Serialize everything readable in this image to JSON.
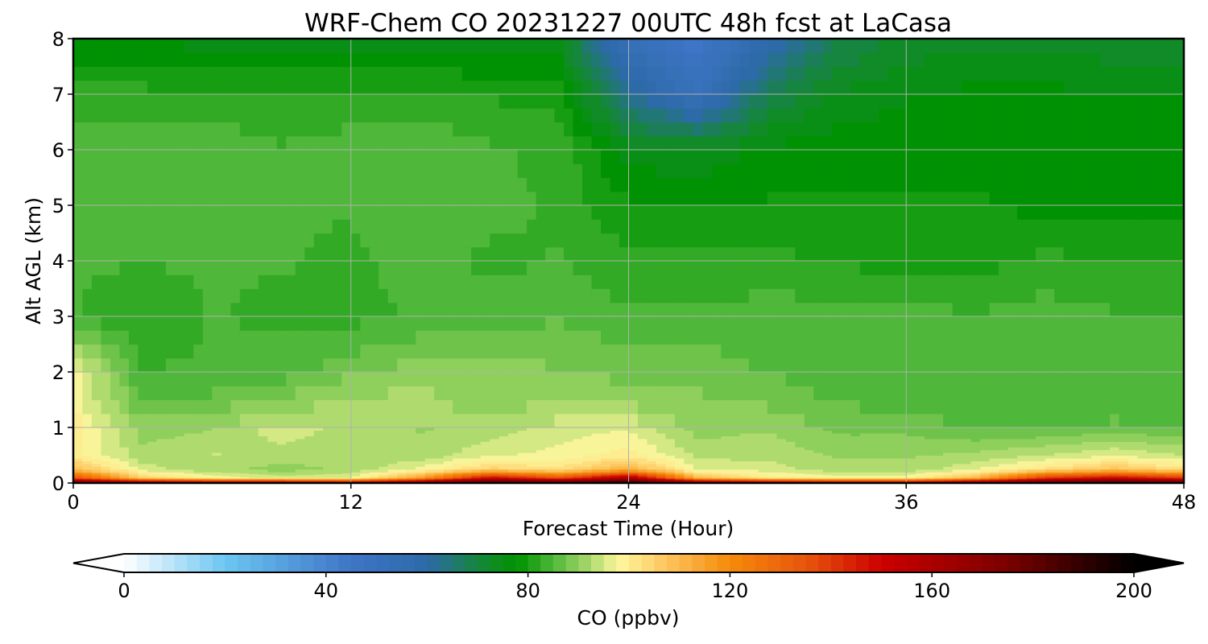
{
  "chart_data": {
    "type": "heatmap",
    "title": "WRF-Chem CO  20231227 00UTC 48h fcst at LaCasa",
    "xlabel": "Forecast Time (Hour)",
    "ylabel": "Alt AGL (km)",
    "xlim": [
      0,
      48
    ],
    "ylim": [
      0,
      8
    ],
    "x_ticks": [
      0,
      12,
      24,
      36,
      48
    ],
    "y_ticks": [
      0,
      1,
      2,
      3,
      4,
      5,
      6,
      7,
      8
    ],
    "grid": true,
    "x": [
      0,
      3,
      6,
      9,
      12,
      15,
      18,
      21,
      24,
      27,
      30,
      33,
      36,
      39,
      42,
      45,
      48
    ],
    "y": [
      0,
      0.1,
      0.25,
      0.5,
      1,
      1.5,
      2,
      3,
      4,
      5,
      6,
      7,
      8
    ],
    "values": [
      [
        185,
        175,
        170,
        170,
        165,
        180,
        195,
        195,
        198,
        180,
        170,
        165,
        165,
        180,
        190,
        195,
        190
      ],
      [
        135,
        105,
        98,
        95,
        96,
        115,
        150,
        135,
        160,
        110,
        100,
        98,
        98,
        110,
        140,
        150,
        140
      ],
      [
        110,
        95,
        92,
        90,
        92,
        97,
        105,
        102,
        112,
        96,
        95,
        92,
        92,
        96,
        102,
        108,
        102
      ],
      [
        100,
        92,
        94,
        93,
        92,
        92,
        96,
        97,
        100,
        93,
        93,
        91,
        91,
        92,
        94,
        96,
        94
      ],
      [
        100,
        90,
        91,
        95,
        93,
        91,
        92,
        95,
        96,
        90,
        91,
        88,
        88,
        86,
        86,
        87,
        86
      ],
      [
        98,
        86,
        87,
        89,
        92,
        92,
        90,
        91,
        90,
        89,
        88,
        86,
        85,
        84,
        84,
        84,
        84
      ],
      [
        97,
        84,
        84,
        85,
        88,
        90,
        90,
        89,
        88,
        88,
        86,
        85,
        85,
        86,
        86,
        84,
        84
      ],
      [
        84,
        81,
        84,
        83,
        83,
        84,
        85,
        86,
        84,
        84,
        85,
        85,
        85,
        84,
        85,
        84,
        84
      ],
      [
        84,
        84,
        84,
        84,
        83,
        85,
        83,
        84,
        82,
        82,
        82,
        81,
        80,
        80,
        82,
        81,
        81
      ],
      [
        85,
        84,
        86,
        84,
        84,
        86,
        85,
        83,
        79,
        79,
        79,
        79,
        79,
        79,
        78,
        78,
        78
      ],
      [
        86,
        86,
        86,
        84,
        85,
        86,
        84,
        83,
        75,
        74,
        77,
        78,
        78,
        78,
        78,
        78,
        78
      ],
      [
        82,
        82,
        82,
        81,
        82,
        82,
        81,
        80,
        62,
        52,
        68,
        74,
        76,
        77,
        77,
        76,
        76
      ],
      [
        76,
        76,
        75,
        75,
        75,
        75,
        74,
        74,
        52,
        44,
        58,
        68,
        72,
        73,
        73,
        72,
        72
      ]
    ],
    "colorbar": {
      "label": "CO  (ppbv)",
      "min": 0,
      "max": 200,
      "ticks": [
        0,
        40,
        80,
        120,
        160,
        200
      ],
      "extend": "both",
      "stops": [
        {
          "v": 0,
          "c": "#ffffff"
        },
        {
          "v": 20,
          "c": "#6cc6f2"
        },
        {
          "v": 45,
          "c": "#3e75c6"
        },
        {
          "v": 60,
          "c": "#2d6aa8"
        },
        {
          "v": 72,
          "c": "#118a2a"
        },
        {
          "v": 78,
          "c": "#009300"
        },
        {
          "v": 85,
          "c": "#4fb73a"
        },
        {
          "v": 92,
          "c": "#a8d86a"
        },
        {
          "v": 98,
          "c": "#fff79e"
        },
        {
          "v": 108,
          "c": "#fcc25a"
        },
        {
          "v": 120,
          "c": "#f58a0a"
        },
        {
          "v": 135,
          "c": "#e8550d"
        },
        {
          "v": 150,
          "c": "#cc0000"
        },
        {
          "v": 175,
          "c": "#7a0000"
        },
        {
          "v": 200,
          "c": "#000000"
        }
      ]
    }
  }
}
